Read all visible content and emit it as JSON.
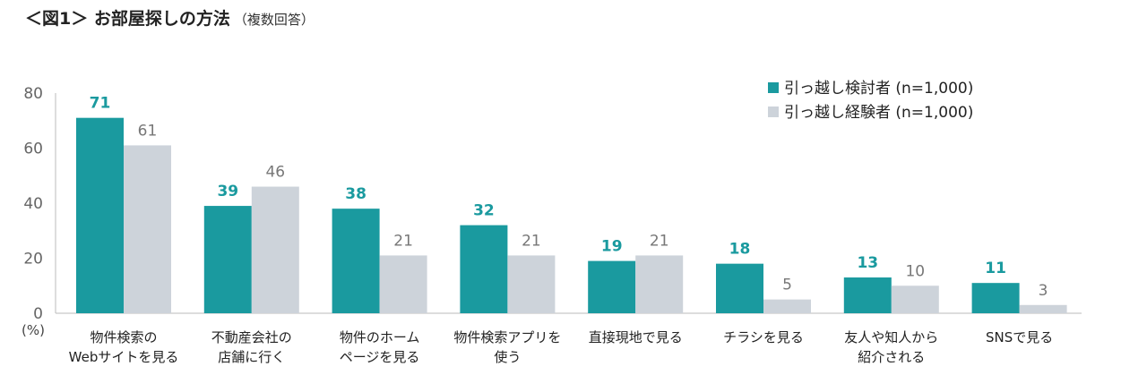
{
  "title": {
    "main": "＜図1＞ お部屋探しの方法",
    "sub": "（複数回答）"
  },
  "chart_data": {
    "type": "bar",
    "categories": [
      [
        "物件検索の",
        "Webサイトを見る"
      ],
      [
        "不動産会社の",
        "店舗に行く"
      ],
      [
        "物件のホーム",
        "ページを見る"
      ],
      [
        "物件検索アプリを",
        "使う"
      ],
      [
        "直接現地で見る"
      ],
      [
        "チラシを見る"
      ],
      [
        "友人や知人から",
        "紹介される"
      ],
      [
        "SNSで見る"
      ]
    ],
    "series": [
      {
        "name": "引っ越し検討者 (n=1,000)",
        "color": "#1a9a9f",
        "values": [
          71,
          39,
          38,
          32,
          19,
          18,
          13,
          11
        ]
      },
      {
        "name": "引っ越し経験者 (n=1,000)",
        "color": "#cdd3da",
        "values": [
          61,
          46,
          21,
          21,
          21,
          5,
          10,
          3
        ]
      }
    ],
    "yticks": [
      0,
      20,
      40,
      60,
      80
    ],
    "ylim": [
      0,
      80
    ],
    "unit_label": "(%)",
    "legend_position": "top-right",
    "grid": false
  }
}
